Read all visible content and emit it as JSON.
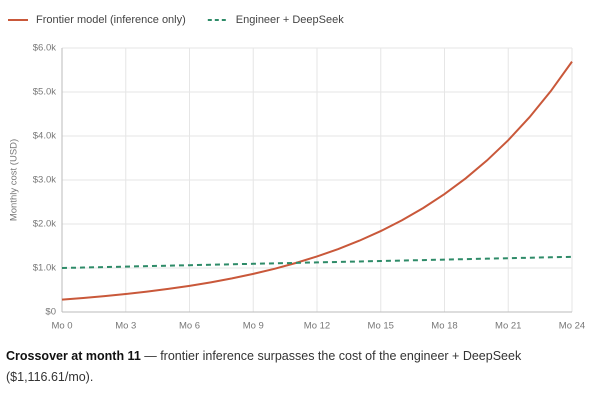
{
  "chart_data": {
    "type": "line",
    "y_label": "Monthly cost (USD)",
    "x": [
      0,
      1,
      2,
      3,
      4,
      5,
      6,
      7,
      8,
      9,
      10,
      11,
      12,
      13,
      14,
      15,
      16,
      17,
      18,
      19,
      20,
      21,
      22,
      23,
      24
    ],
    "series": [
      {
        "name": "Frontier model (inference only)",
        "color": "#c9583a",
        "line_style": "solid",
        "values": [
          280,
          317.4,
          359.9,
          408,
          462.6,
          524.4,
          594.5,
          674,
          764.1,
          866.3,
          982.1,
          1113.4,
          1262.3,
          1431.1,
          1622.4,
          1839.3,
          2085.2,
          2364,
          2680.1,
          3038.4,
          3444.6,
          3905.1,
          4427.2,
          5019.1,
          5690.1
        ]
      },
      {
        "name": "Engineer + DeepSeek",
        "color": "#2e8b68",
        "line_style": "dashed",
        "values": [
          1000,
          1010.6,
          1021.2,
          1031.8,
          1042.4,
          1053,
          1063.6,
          1074.2,
          1084.8,
          1095.4,
          1106,
          1116.6,
          1127.2,
          1137.8,
          1148.4,
          1159,
          1169.6,
          1180.2,
          1190.8,
          1201.4,
          1212,
          1222.6,
          1233.2,
          1243.8,
          1254.4
        ]
      }
    ],
    "xlim": [
      0,
      24
    ],
    "xticks": [
      {
        "value": 0,
        "label": "Mo 0"
      },
      {
        "value": 3,
        "label": "Mo 3"
      },
      {
        "value": 6,
        "label": "Mo 6"
      },
      {
        "value": 9,
        "label": "Mo 9"
      },
      {
        "value": 12,
        "label": "Mo 12"
      },
      {
        "value": 15,
        "label": "Mo 15"
      },
      {
        "value": 18,
        "label": "Mo 18"
      },
      {
        "value": 21,
        "label": "Mo 21"
      },
      {
        "value": 24,
        "label": "Mo 24"
      }
    ],
    "ylim": [
      0,
      6000
    ],
    "yticks": [
      {
        "value": 0,
        "label": "$0"
      },
      {
        "value": 1000,
        "label": "$1.0k"
      },
      {
        "value": 2000,
        "label": "$2.0k"
      },
      {
        "value": 3000,
        "label": "$3.0k"
      },
      {
        "value": 4000,
        "label": "$4.0k"
      },
      {
        "value": 5000,
        "label": "$5.0k"
      },
      {
        "value": 6000,
        "label": "$6.0k"
      }
    ],
    "grid": true,
    "legend": "top-left"
  },
  "footnote": {
    "bold": "Crossover at month 11",
    "text": " — frontier inference surpasses the cost of the engineer + DeepSeek ($1,116.61/mo)."
  }
}
